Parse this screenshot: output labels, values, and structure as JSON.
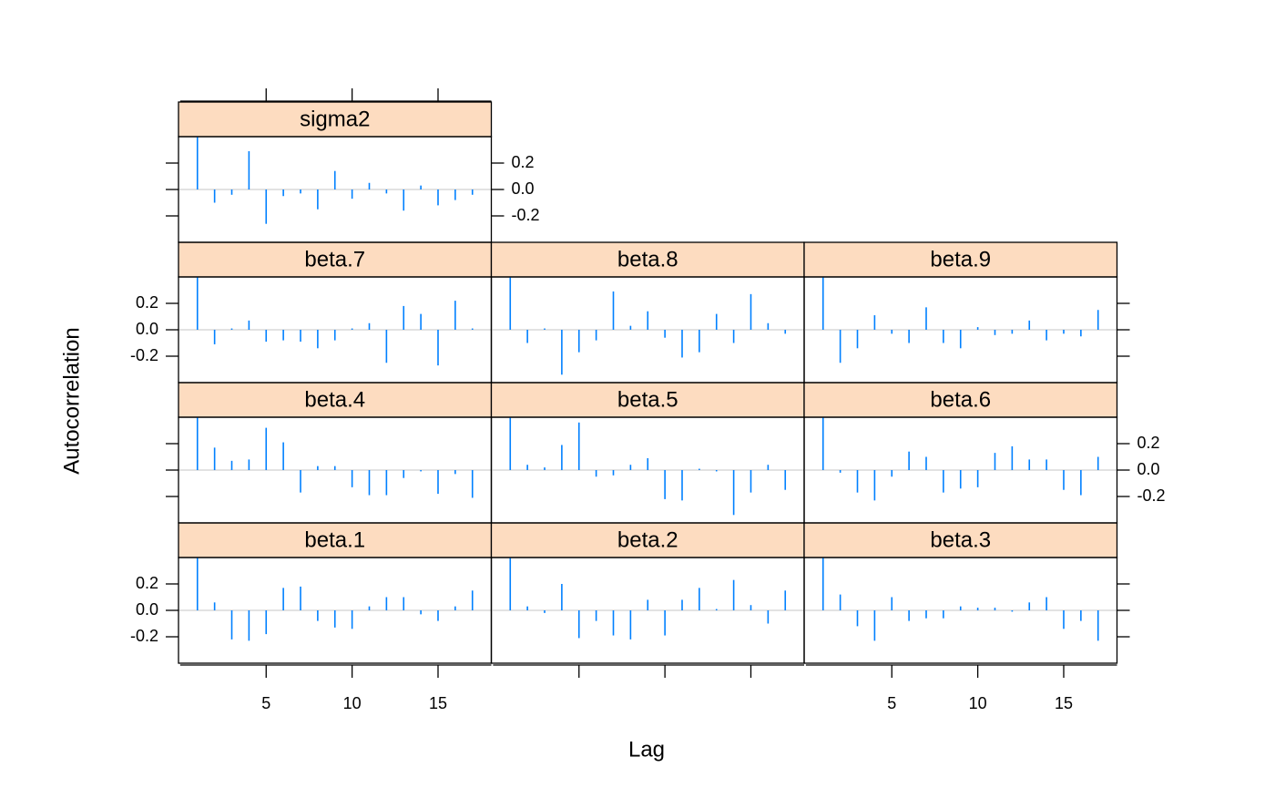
{
  "chart_data": {
    "type": "acf",
    "xlabel": "Lag",
    "ylabel": "Autocorrelation",
    "x": [
      1,
      2,
      3,
      4,
      5,
      6,
      7,
      8,
      9,
      10,
      11,
      12,
      13,
      14,
      15,
      16,
      17
    ],
    "xlim": [
      -0.1,
      18.1
    ],
    "ylim": [
      -0.4,
      0.4
    ],
    "xticks": [
      5,
      10,
      15
    ],
    "yticks": [
      -0.2,
      {
        "value": 0,
        "label": "0.0"
      },
      0.2
    ],
    "color": "#0080ff",
    "strip_color": "#fddcc0",
    "series": [
      {
        "name": "beta.1",
        "values": [
          1,
          0.06,
          -0.22,
          -0.23,
          -0.18,
          0.17,
          0.18,
          -0.08,
          -0.13,
          -0.14,
          0.03,
          0.1,
          0.1,
          -0.03,
          -0.08,
          0.03,
          0.15
        ]
      },
      {
        "name": "beta.2",
        "values": [
          1,
          0.03,
          -0.02,
          0.2,
          -0.21,
          -0.08,
          -0.19,
          -0.22,
          0.08,
          -0.19,
          0.08,
          0.17,
          0.01,
          0.23,
          0.04,
          -0.1,
          0.15
        ]
      },
      {
        "name": "beta.3",
        "values": [
          1,
          0.12,
          -0.12,
          -0.23,
          0.1,
          -0.08,
          -0.06,
          -0.06,
          0.03,
          0.02,
          0.02,
          -0.01,
          0.06,
          0.1,
          -0.14,
          -0.08,
          -0.23
        ]
      },
      {
        "name": "beta.4",
        "values": [
          1,
          0.17,
          0.07,
          0.08,
          0.32,
          0.21,
          -0.17,
          0.03,
          0.03,
          -0.13,
          -0.19,
          -0.19,
          -0.06,
          -0.01,
          -0.18,
          -0.03,
          -0.21
        ]
      },
      {
        "name": "beta.5",
        "values": [
          1,
          0.04,
          0.02,
          0.19,
          0.36,
          -0.05,
          -0.04,
          0.04,
          0.09,
          -0.22,
          -0.23,
          0.01,
          -0.01,
          -0.34,
          -0.17,
          0.04,
          -0.15
        ]
      },
      {
        "name": "beta.6",
        "values": [
          1,
          -0.02,
          -0.17,
          -0.23,
          -0.05,
          0.14,
          0.1,
          -0.17,
          -0.14,
          -0.13,
          0.13,
          0.18,
          0.08,
          0.08,
          -0.15,
          -0.19,
          0.1
        ]
      },
      {
        "name": "beta.7",
        "values": [
          1,
          -0.11,
          0.01,
          0.07,
          -0.09,
          -0.08,
          -0.09,
          -0.14,
          -0.08,
          0.01,
          0.05,
          -0.25,
          0.18,
          0.12,
          -0.27,
          0.22,
          0.01
        ]
      },
      {
        "name": "beta.8",
        "values": [
          1,
          -0.1,
          0.01,
          -0.34,
          -0.17,
          -0.08,
          0.29,
          0.03,
          0.14,
          -0.06,
          -0.21,
          -0.17,
          0.12,
          -0.1,
          0.27,
          0.05,
          -0.03
        ]
      },
      {
        "name": "beta.9",
        "values": [
          1,
          -0.25,
          -0.14,
          0.11,
          -0.03,
          -0.1,
          0.17,
          -0.1,
          -0.14,
          0.02,
          -0.04,
          -0.03,
          0.07,
          -0.08,
          -0.03,
          -0.05,
          0.15
        ]
      },
      {
        "name": "sigma2",
        "values": [
          1,
          -0.1,
          -0.04,
          0.29,
          -0.26,
          -0.05,
          -0.03,
          -0.15,
          0.14,
          -0.07,
          0.05,
          -0.03,
          -0.16,
          0.03,
          -0.12,
          -0.08,
          -0.04
        ]
      }
    ]
  }
}
